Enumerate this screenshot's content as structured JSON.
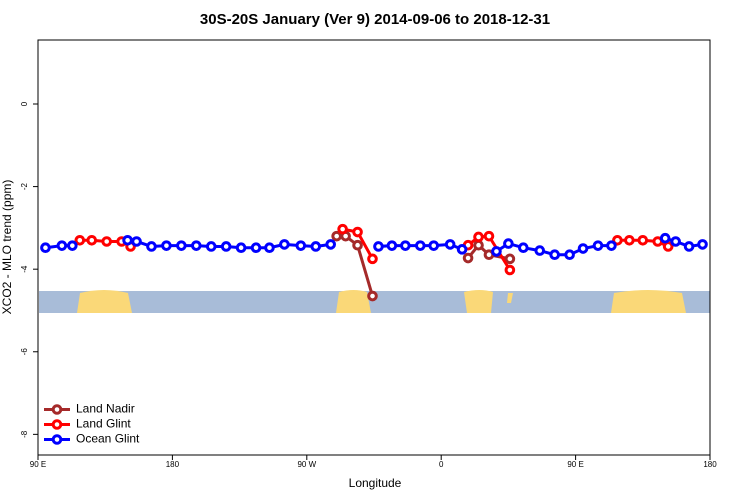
{
  "chart_data": {
    "type": "line",
    "title": "30S-20S January (Ver 9)   2014-09-06 to 2018-12-31",
    "x_label": "Longitude",
    "y_label": "XCO2 - MLO trend (ppm)",
    "xlim": [
      90,
      540
    ],
    "ylim": [
      -8.5,
      1.55
    ],
    "xticks": [
      {
        "value": 90,
        "label": "90 E"
      },
      180,
      {
        "value": 270,
        "label": "90 W"
      },
      {
        "value": 360,
        "label": "0"
      },
      {
        "value": 450,
        "label": "90 E"
      },
      {
        "value": 540,
        "label": "180"
      }
    ],
    "yticks": [
      -8,
      -6,
      -4,
      -2,
      0
    ],
    "legend": "bottomleft",
    "series": [
      {
        "name": "Land Nadir",
        "color": "#a52a2a",
        "x": [
          290,
          296,
          304,
          314,
          346,
          378,
          385,
          392,
          406
        ],
        "values": [
          -3.2,
          -3.2,
          -3.42,
          -4.65,
          null,
          -3.73,
          -3.42,
          -3.65,
          -3.75
        ]
      },
      {
        "name": "Land Glint",
        "color": "#ff0000",
        "x": [
          118,
          126,
          136,
          146,
          152,
          223,
          294,
          304,
          314,
          346,
          378,
          385,
          392,
          406,
          442,
          478,
          486,
          495,
          505,
          512
        ],
        "values": [
          -3.3,
          -3.3,
          -3.33,
          -3.33,
          -3.45,
          null,
          -3.03,
          -3.1,
          -3.75,
          null,
          -3.42,
          -3.22,
          -3.2,
          -4.02,
          null,
          -3.3,
          -3.3,
          -3.3,
          -3.33,
          -3.45
        ]
      },
      {
        "name": "Ocean Glint",
        "color": "#0000ff",
        "x": [
          95,
          106,
          113,
          132,
          150,
          156,
          166,
          176,
          186,
          196,
          206,
          216,
          226,
          236,
          245,
          255,
          266,
          276,
          286,
          302,
          318,
          327,
          336,
          346,
          355,
          366,
          374,
          386,
          397,
          405,
          415,
          426,
          436,
          446,
          455,
          465,
          474,
          492,
          510,
          517,
          526,
          535
        ],
        "values": [
          -3.48,
          -3.43,
          -3.43,
          null,
          -3.3,
          -3.33,
          -3.45,
          -3.43,
          -3.43,
          -3.43,
          -3.45,
          -3.45,
          -3.48,
          -3.48,
          -3.48,
          -3.4,
          -3.43,
          -3.45,
          -3.4,
          null,
          -3.45,
          -3.43,
          -3.43,
          -3.43,
          -3.43,
          -3.4,
          -3.52,
          null,
          -3.57,
          -3.38,
          -3.48,
          -3.55,
          -3.65,
          -3.65,
          -3.5,
          -3.43,
          -3.43,
          null,
          -3.25,
          -3.33,
          -3.45,
          -3.4
        ]
      }
    ]
  }
}
